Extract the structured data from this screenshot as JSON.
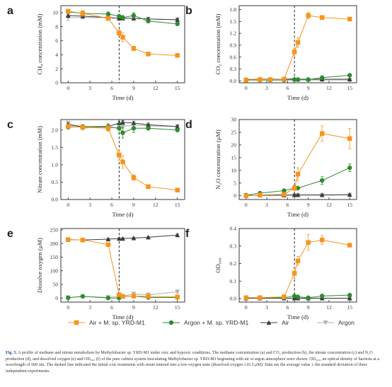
{
  "figure": {
    "caption_label": "Fig. 5.",
    "caption_text": "A profile of methane and nitrate metabolism by Methylobacter sp. YRD-M1 under oxic and hypoxic conditions. The methane concentration (a) and CO₂ production (b), the nitrate concentration (c) and N₂O production (d), and dissolved oxygen (e) and OD₆₀₀ (f) of the pure culture system inoculating Methylobacter sp. YRD-M1 beginning with air or argon atmosphere were shown. OD₆₀₀, an optical density of bacteria at a wavelength of 600 nm. The dashed line indicated the initial oxic treatments with strain entered into a low-oxygen state (dissolved oxygen ≤16.5 μM). Data are the average value ± the standard deviation of three independent experiments."
  },
  "legend": {
    "items": [
      {
        "label": "Air + M. sp. YRD-M1",
        "color": "#f7941d",
        "marker": "square"
      },
      {
        "label": "Argon + M. sp. YRD-M1",
        "color": "#2e8b2e",
        "marker": "circle"
      },
      {
        "label": "Air",
        "color": "#3a3a3a",
        "marker": "triangle-up"
      },
      {
        "label": "Argon",
        "color": "#b0b0b0",
        "marker": "triangle-down"
      }
    ]
  },
  "chart_data": [
    {
      "panel": "a",
      "type": "line",
      "xlabel": "Time (d)",
      "ylabel": "CH₄ concentration (mM)",
      "xlim": [
        -1,
        16
      ],
      "ylim": [
        0,
        11
      ],
      "xticks": [
        0,
        3,
        6,
        9,
        12,
        15
      ],
      "yticks": [
        0,
        2,
        4,
        6,
        8,
        10
      ],
      "ytick_labels": [
        "0",
        "2",
        "4",
        "6",
        "8",
        "10"
      ],
      "dashed_x": 7,
      "series": [
        {
          "name": "Air + M. sp. YRD-M1",
          "x": [
            0,
            2,
            5.5,
            7,
            7.5,
            9,
            11,
            15
          ],
          "y": [
            10.2,
            9.9,
            9.2,
            7.1,
            6.5,
            4.9,
            4.1,
            3.9
          ],
          "err": [
            0.3,
            0.4,
            0.3,
            0.4,
            0.6,
            0.3,
            0.1,
            0.1
          ]
        },
        {
          "name": "Argon + M. sp. YRD-M1",
          "x": [
            0,
            2,
            5.5,
            7,
            7.5,
            9,
            11,
            15
          ],
          "y": [
            10.1,
            9.9,
            9.8,
            9.5,
            9.3,
            9.6,
            8.8,
            8.4
          ],
          "err": [
            0.2,
            0.3,
            0.3,
            0.2,
            0.3,
            0.4,
            0.2,
            0.2
          ]
        },
        {
          "name": "Air",
          "x": [
            0,
            2,
            5.5,
            7,
            7.5,
            9,
            11,
            15
          ],
          "y": [
            9.6,
            9.5,
            9.3,
            9.2,
            9.2,
            9.2,
            9.1,
            9.0
          ],
          "err": [
            0.3,
            0.2,
            0.2,
            0.2,
            0.2,
            0.2,
            0.2,
            0.2
          ]
        },
        {
          "name": "Argon",
          "x": [
            0,
            2,
            5.5,
            7,
            7.5,
            9,
            11,
            15
          ],
          "y": [
            9.3,
            9.3,
            9.3,
            9.2,
            9.2,
            9.2,
            9.1,
            9.0
          ],
          "err": [
            0.4,
            0.2,
            0.2,
            0.2,
            0.2,
            0.2,
            0.2,
            0.2
          ]
        }
      ]
    },
    {
      "panel": "b",
      "type": "line",
      "xlabel": "Time (d)",
      "ylabel": "CO₂ concentration (mM)",
      "xlim": [
        -1,
        16
      ],
      "ylim": [
        -0.05,
        1.9
      ],
      "xticks": [
        0,
        3,
        6,
        9,
        12,
        15
      ],
      "yticks": [
        0,
        0.3,
        0.6,
        0.9,
        1.2,
        1.5,
        1.8
      ],
      "ytick_labels": [
        "0.0",
        "0.3",
        "0.6",
        "0.9",
        "1.2",
        "1.5",
        "1.8"
      ],
      "dashed_x": 7,
      "series": [
        {
          "name": "Air + M. sp. YRD-M1",
          "x": [
            0,
            2,
            3.5,
            5.5,
            7,
            7.5,
            9,
            11,
            15
          ],
          "y": [
            0.02,
            0.03,
            0.03,
            0.04,
            0.73,
            0.97,
            1.65,
            1.6,
            1.56
          ],
          "err": [
            0.01,
            0.01,
            0.01,
            0.01,
            0.1,
            0.12,
            0.08,
            0.02,
            0.02
          ]
        },
        {
          "name": "Argon + M. sp. YRD-M1",
          "x": [
            0,
            2,
            3.5,
            5.5,
            7,
            7.5,
            9,
            11,
            15
          ],
          "y": [
            0.02,
            0.02,
            0.02,
            0.02,
            0.03,
            0.03,
            0.03,
            0.08,
            0.14
          ],
          "err": [
            0.01,
            0.01,
            0.01,
            0.01,
            0.01,
            0.01,
            0.01,
            0.02,
            0.02
          ]
        },
        {
          "name": "Air",
          "x": [
            0,
            2,
            3.5,
            5.5,
            7,
            7.5,
            9,
            11,
            15
          ],
          "y": [
            0.03,
            0.04,
            0.04,
            0.04,
            0.05,
            0.04,
            0.04,
            0.04,
            0.04
          ],
          "err": [
            0.01,
            0.01,
            0.01,
            0.01,
            0.01,
            0.01,
            0.01,
            0.01,
            0.01
          ]
        },
        {
          "name": "Argon",
          "x": [
            0,
            2,
            3.5,
            5.5,
            7,
            7.5,
            9,
            11,
            15
          ],
          "y": [
            0.01,
            0.02,
            0.02,
            0.02,
            0.02,
            0.02,
            0.02,
            0.02,
            0.02
          ],
          "err": [
            0.01,
            0.01,
            0.01,
            0.01,
            0.01,
            0.01,
            0.01,
            0.01,
            0.01
          ]
        }
      ]
    },
    {
      "panel": "c",
      "type": "line",
      "xlabel": "Time (d)",
      "ylabel": "Nitrate concentration (mM)",
      "xlim": [
        -1,
        16
      ],
      "ylim": [
        0,
        2.3
      ],
      "xticks": [
        0,
        3,
        6,
        9,
        12,
        15
      ],
      "yticks": [
        0,
        0.5,
        1.0,
        1.5,
        2.0
      ],
      "ytick_labels": [
        "0.0",
        "0.5",
        "1.0",
        "1.5",
        "2.0"
      ],
      "dashed_x": 7,
      "series": [
        {
          "name": "Air + M. sp. YRD-M1",
          "x": [
            0,
            2,
            5.5,
            7,
            7.5,
            9,
            11,
            15
          ],
          "y": [
            2.1,
            2.08,
            2.05,
            1.28,
            1.08,
            0.63,
            0.37,
            0.27
          ],
          "err": [
            0.05,
            0.05,
            0.08,
            0.15,
            0.18,
            0.08,
            0.06,
            0.03
          ]
        },
        {
          "name": "Argon + M. sp. YRD-M1",
          "x": [
            0,
            2,
            5.5,
            7,
            7.5,
            9,
            11,
            15
          ],
          "y": [
            2.08,
            2.1,
            2.08,
            2.05,
            1.92,
            2.05,
            2.05,
            2.0
          ],
          "err": [
            0.05,
            0.05,
            0.1,
            0.15,
            0.15,
            0.12,
            0.05,
            0.05
          ]
        },
        {
          "name": "Air",
          "x": [
            0,
            2,
            5.5,
            7,
            7.5,
            9,
            11,
            15
          ],
          "y": [
            2.15,
            2.1,
            2.1,
            2.2,
            2.22,
            2.2,
            2.15,
            2.1
          ],
          "err": [
            0.05,
            0.05,
            0.05,
            0.05,
            0.05,
            0.05,
            0.05,
            0.05
          ]
        },
        {
          "name": "Argon",
          "x": [
            0,
            2,
            5.5,
            7,
            7.5,
            9,
            11,
            15
          ],
          "y": [
            2.2,
            2.05,
            2.1,
            2.05,
            2.1,
            2.15,
            2.12,
            2.1
          ],
          "err": [
            0.05,
            0.05,
            0.05,
            0.05,
            0.05,
            0.05,
            0.05,
            0.05
          ]
        }
      ]
    },
    {
      "panel": "d",
      "type": "line",
      "xlabel": "Time (d)",
      "ylabel": "N₂O concentration (μM)",
      "xlim": [
        -1,
        16
      ],
      "ylim": [
        -1.5,
        30
      ],
      "xticks": [
        0,
        3,
        6,
        9,
        12,
        15
      ],
      "yticks": [
        0,
        5,
        10,
        15,
        20,
        25,
        30
      ],
      "ytick_labels": [
        "0",
        "5",
        "10",
        "15",
        "20",
        "25",
        "30"
      ],
      "dashed_x": 7,
      "series": [
        {
          "name": "Air + M. sp. YRD-M1",
          "x": [
            0,
            2,
            5.5,
            7,
            7.5,
            11,
            15
          ],
          "y": [
            0,
            0.3,
            0.5,
            3.0,
            8.5,
            24.5,
            22.5
          ],
          "err": [
            0.2,
            0.2,
            0.3,
            1.0,
            2.5,
            3.0,
            4.0
          ]
        },
        {
          "name": "Argon + M. sp. YRD-M1",
          "x": [
            0,
            2,
            5.5,
            7,
            7.5,
            11,
            15
          ],
          "y": [
            0.2,
            1.0,
            2.0,
            3.0,
            3.0,
            6.0,
            11.0
          ],
          "err": [
            0.2,
            0.3,
            0.4,
            0.5,
            0.5,
            1.5,
            1.5
          ]
        },
        {
          "name": "Air",
          "x": [
            0,
            2,
            5.5,
            7,
            7.5,
            11,
            15
          ],
          "y": [
            0.1,
            0.2,
            0.2,
            0.3,
            0.3,
            0.3,
            0.4
          ],
          "err": [
            0.1,
            0.1,
            0.1,
            0.1,
            0.1,
            0.1,
            0.1
          ]
        },
        {
          "name": "Argon",
          "x": [
            0,
            2,
            5.5,
            7,
            7.5,
            11,
            15
          ],
          "y": [
            0.1,
            0.1,
            0.1,
            0.2,
            0.2,
            0.2,
            0.3
          ],
          "err": [
            0.1,
            0.1,
            0.1,
            0.1,
            0.1,
            0.1,
            0.1
          ]
        }
      ]
    },
    {
      "panel": "e",
      "type": "line",
      "xlabel": "Time (d)",
      "ylabel": "Dissolve oxygen (μM)",
      "xlim": [
        -1,
        16
      ],
      "ylim": [
        -15,
        255
      ],
      "xticks": [
        0,
        3,
        6,
        9,
        12,
        15
      ],
      "yticks": [
        0,
        50,
        100,
        150,
        200,
        250
      ],
      "ytick_labels": [
        "0",
        "50",
        "100",
        "150",
        "200",
        "250"
      ],
      "dashed_x": 7,
      "series": [
        {
          "name": "Air + M. sp. YRD-M1",
          "x": [
            0,
            2,
            5.5,
            7,
            7.5,
            9,
            11,
            15
          ],
          "y": [
            214,
            213,
            196,
            12,
            6,
            7,
            6,
            4
          ],
          "err": [
            4,
            4,
            5,
            5,
            4,
            4,
            4,
            3
          ]
        },
        {
          "name": "Argon + M. sp. YRD-M1",
          "x": [
            0,
            2,
            5.5,
            7,
            7.5,
            9,
            11,
            15
          ],
          "y": [
            1,
            6,
            0,
            0,
            6,
            7,
            2,
            2
          ],
          "err": [
            2,
            3,
            2,
            2,
            3,
            3,
            2,
            2
          ]
        },
        {
          "name": "Air",
          "x": [
            0,
            2,
            5.5,
            7,
            7.5,
            9,
            11,
            15
          ],
          "y": [
            214,
            213,
            216,
            218,
            218,
            220,
            223,
            231
          ],
          "err": [
            3,
            3,
            3,
            3,
            3,
            3,
            3,
            4
          ]
        },
        {
          "name": "Argon",
          "x": [
            0,
            2,
            5.5,
            7,
            7.5,
            9,
            11,
            15
          ],
          "y": [
            2,
            5,
            3,
            5,
            6,
            15,
            12,
            23
          ],
          "err": [
            2,
            3,
            2,
            3,
            3,
            5,
            5,
            6
          ]
        }
      ]
    },
    {
      "panel": "f",
      "type": "line",
      "xlabel": "Time (d)",
      "ylabel": "OD₆₀₀",
      "xlim": [
        -1,
        16
      ],
      "ylim": [
        -0.02,
        0.4
      ],
      "xticks": [
        0,
        3,
        6,
        9,
        12,
        15
      ],
      "yticks": [
        0,
        0.1,
        0.2,
        0.3,
        0.4
      ],
      "ytick_labels": [
        "0.0",
        "0.1",
        "0.2",
        "0.3",
        "0.4"
      ],
      "dashed_x": 7,
      "series": [
        {
          "name": "Air + M. sp. YRD-M1",
          "x": [
            0,
            2,
            5.5,
            7,
            7.5,
            9,
            11,
            15
          ],
          "y": [
            0.005,
            0.005,
            0.01,
            0.145,
            0.215,
            0.32,
            0.335,
            0.305
          ],
          "err": [
            0.003,
            0.003,
            0.005,
            0.03,
            0.025,
            0.045,
            0.025,
            0.01
          ]
        },
        {
          "name": "Argon + M. sp. YRD-M1",
          "x": [
            0,
            2,
            5.5,
            7,
            7.5,
            9,
            11,
            15
          ],
          "y": [
            0.005,
            0.005,
            0.005,
            0.015,
            0.01,
            0.005,
            0.015,
            0.02
          ],
          "err": [
            0.003,
            0.003,
            0.003,
            0.005,
            0.005,
            0.003,
            0.005,
            0.005
          ]
        },
        {
          "name": "Air",
          "x": [
            0,
            2,
            5.5,
            7,
            7.5,
            9,
            11,
            15
          ],
          "y": [
            0.002,
            0.002,
            0.002,
            0.002,
            0.002,
            0.002,
            0.002,
            0.002
          ],
          "err": [
            0.002,
            0.002,
            0.002,
            0.002,
            0.002,
            0.002,
            0.002,
            0.002
          ]
        },
        {
          "name": "Argon",
          "x": [
            0,
            2,
            5.5,
            7,
            7.5,
            9,
            11,
            15
          ],
          "y": [
            0.001,
            0.001,
            0.001,
            0.001,
            0.001,
            0.001,
            0.001,
            0.001
          ],
          "err": [
            0.002,
            0.002,
            0.002,
            0.002,
            0.002,
            0.002,
            0.002,
            0.002
          ]
        }
      ]
    }
  ]
}
